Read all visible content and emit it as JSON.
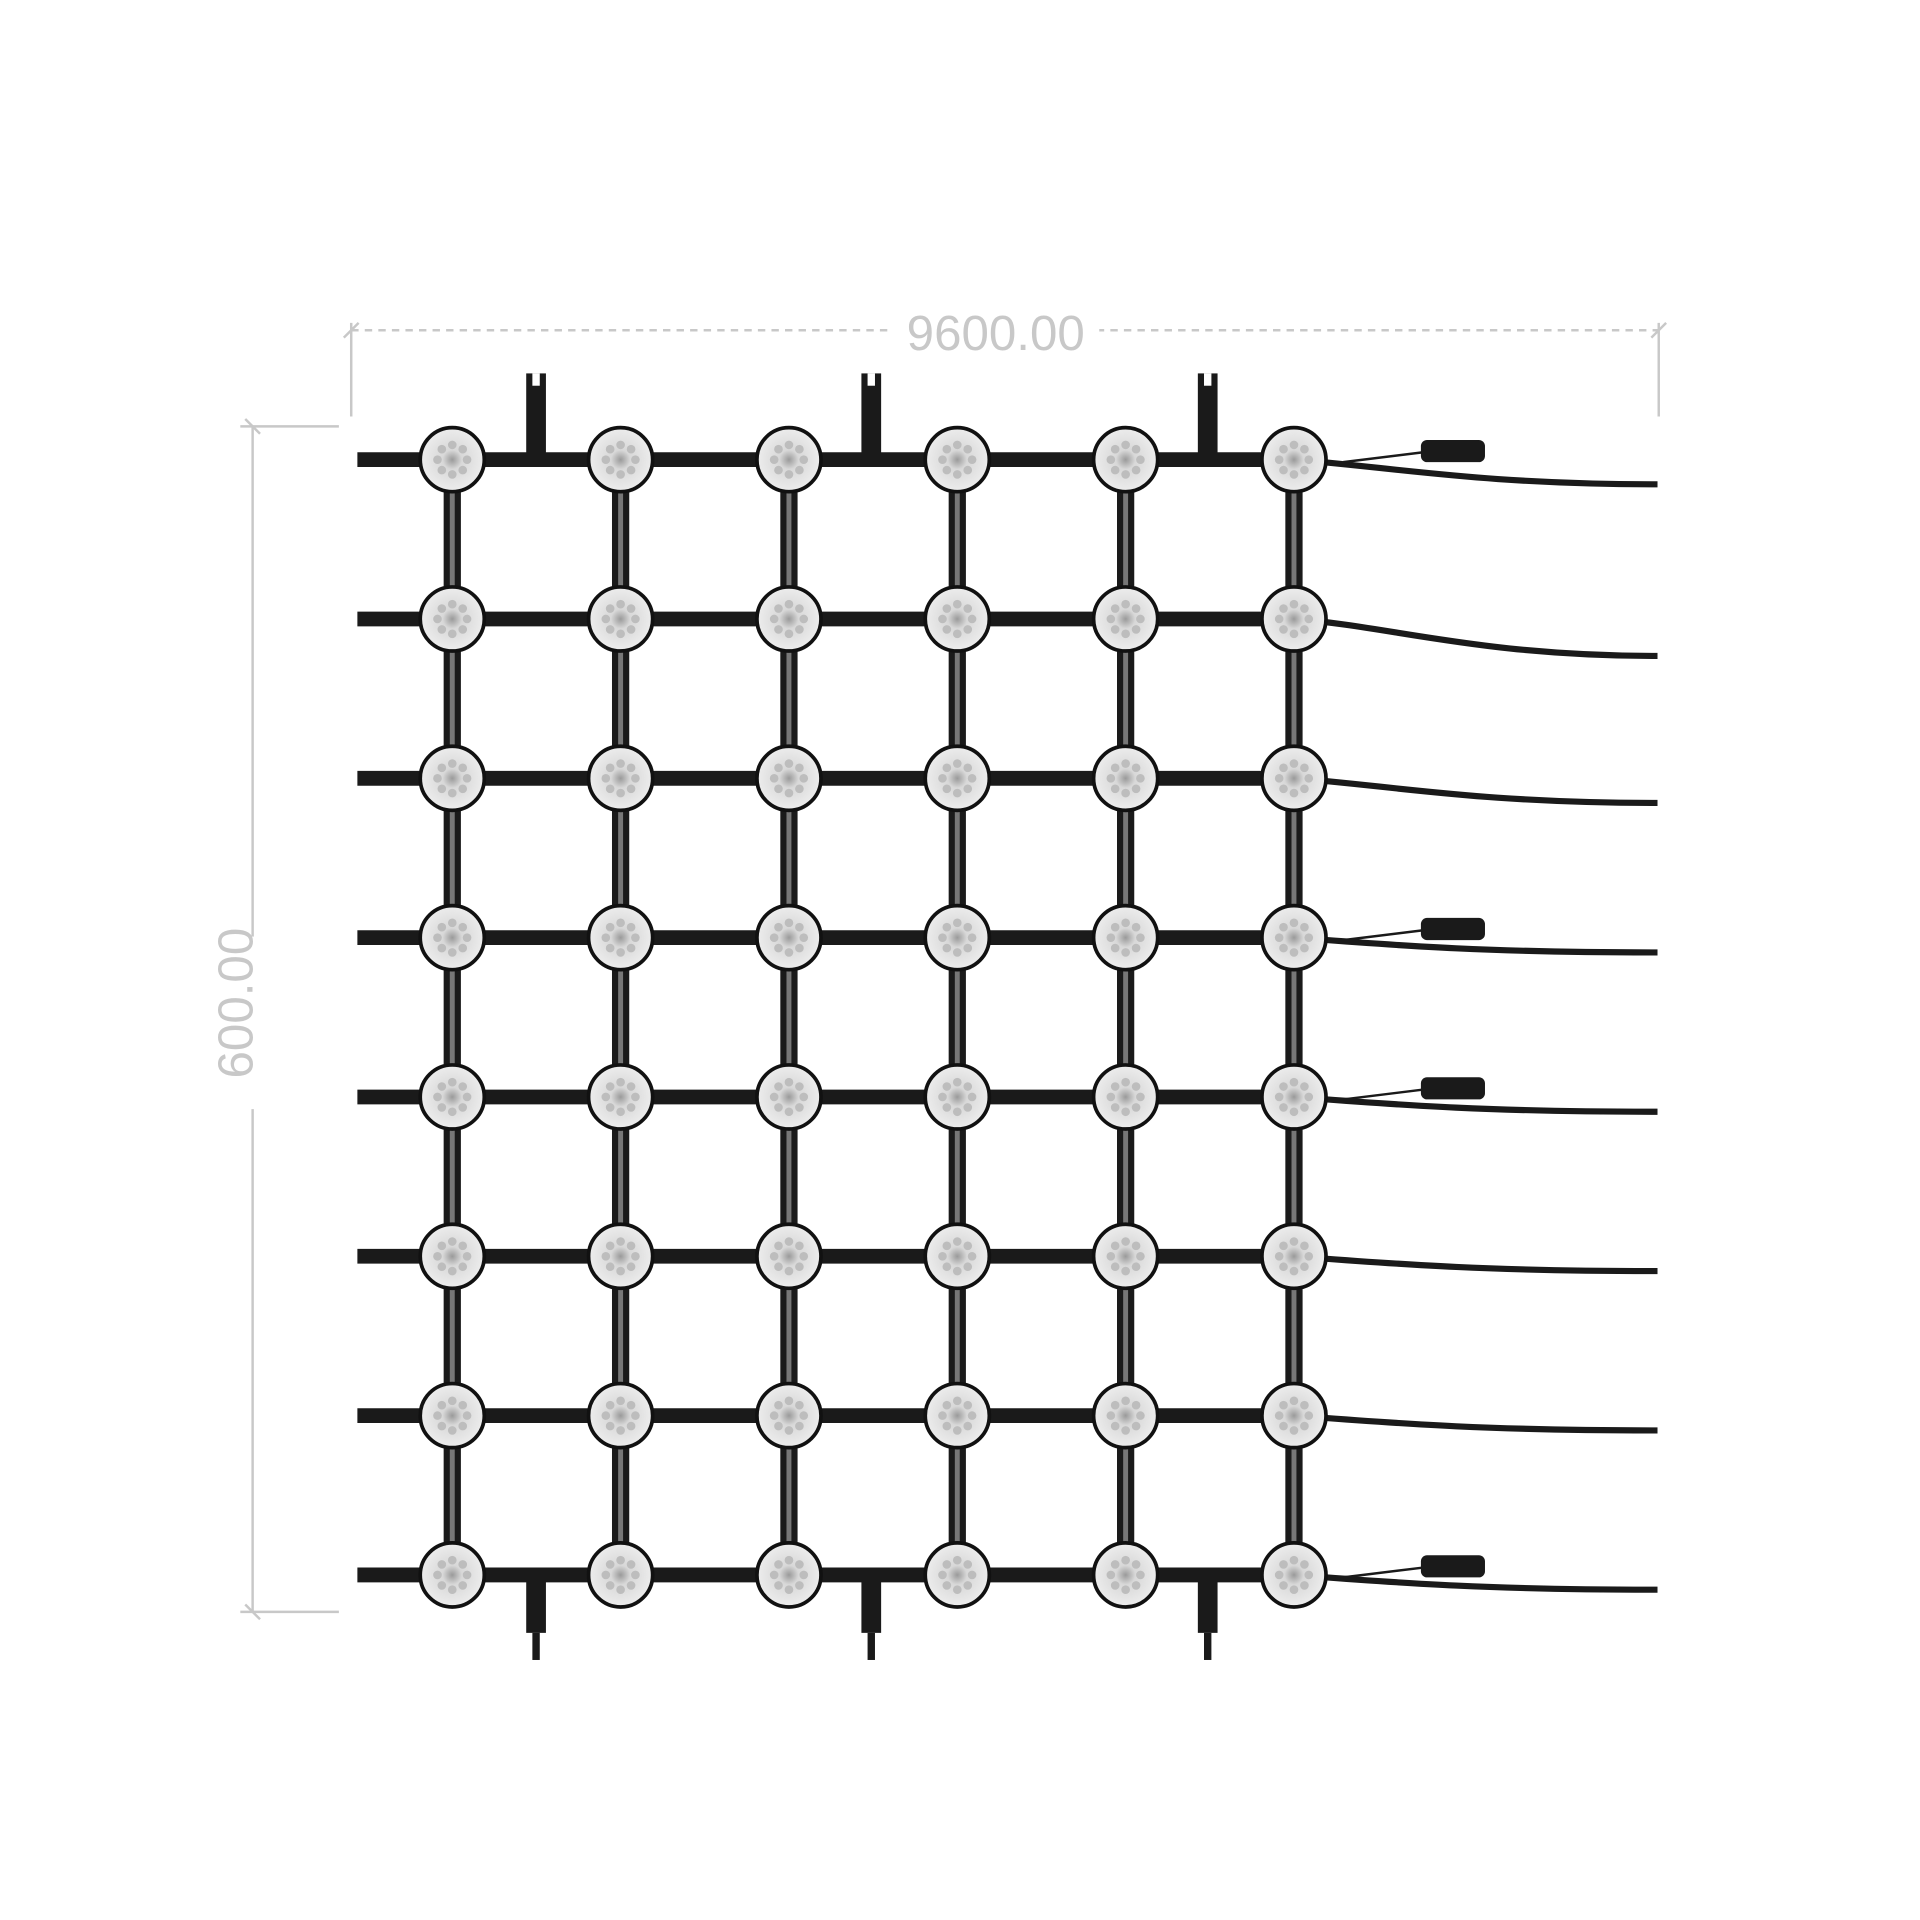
{
  "dimensions": {
    "width_label": "9600.00",
    "height_label": "600.00"
  },
  "grid": {
    "node_columns": 6,
    "node_rows": 8,
    "rows_with_plug_connector": [
      0,
      3,
      4,
      7
    ],
    "top_mounting_tabs": 3,
    "bottom_mounting_tabs": 3
  },
  "colors": {
    "cable": "#1a1a1a",
    "node": "#e6e6e6",
    "dimension_line": "#c8c8c8"
  }
}
